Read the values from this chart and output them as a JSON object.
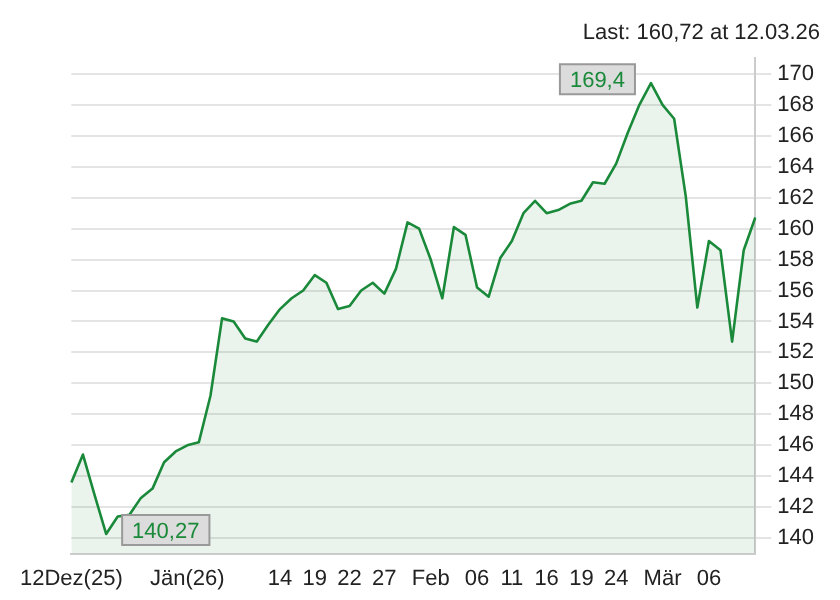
{
  "chart_data": {
    "type": "area",
    "title": "Last: 160,72 at 12.03.26",
    "categories": [
      "12Dez(25)",
      null,
      null,
      null,
      null,
      null,
      null,
      null,
      null,
      null,
      "Jän(26)",
      null,
      null,
      null,
      null,
      null,
      null,
      null,
      "14",
      null,
      null,
      "19",
      null,
      null,
      "22",
      null,
      null,
      "27",
      null,
      null,
      null,
      "Feb",
      null,
      null,
      null,
      "06",
      null,
      null,
      "11",
      null,
      null,
      "16",
      null,
      null,
      "19",
      null,
      null,
      "24",
      null,
      null,
      null,
      "Mär",
      null,
      null,
      null,
      "06",
      null,
      null,
      null,
      null
    ],
    "series": [
      {
        "color": "#1a8a3a",
        "values": [
          143.6,
          145.4,
          142.8,
          140.27,
          141.4,
          141.5,
          142.6,
          143.2,
          144.9,
          145.6,
          146.0,
          146.2,
          149.2,
          154.2,
          154.0,
          152.9,
          152.7,
          153.8,
          154.8,
          155.5,
          156.0,
          157.0,
          156.5,
          154.8,
          155.0,
          156.0,
          156.5,
          155.8,
          157.4,
          160.4,
          160.0,
          158.0,
          155.5,
          160.1,
          159.6,
          156.2,
          155.6,
          158.1,
          159.2,
          161.0,
          161.8,
          161.0,
          161.2,
          161.6,
          161.8,
          163.0,
          162.9,
          164.2,
          166.2,
          168.0,
          169.4,
          168.0,
          167.1,
          162.1,
          154.9,
          159.2,
          158.6,
          152.7,
          158.6,
          160.72
        ],
        "value_labels": [
          null,
          null,
          null,
          "140,27",
          null,
          null,
          null,
          null,
          null,
          null,
          null,
          null,
          null,
          null,
          null,
          null,
          null,
          null,
          null,
          null,
          null,
          null,
          null,
          null,
          null,
          null,
          null,
          null,
          null,
          null,
          null,
          null,
          null,
          null,
          null,
          null,
          null,
          null,
          null,
          null,
          null,
          null,
          null,
          null,
          null,
          null,
          null,
          null,
          null,
          null,
          "169,4",
          null,
          null,
          null,
          null,
          null,
          null,
          null,
          null,
          null
        ]
      }
    ],
    "ylim": [
      139,
      171
    ],
    "yticks": [
      140,
      142,
      144,
      146,
      148,
      150,
      152,
      154,
      156,
      158,
      160,
      162,
      164,
      166,
      168,
      170
    ],
    "grid": "y"
  }
}
